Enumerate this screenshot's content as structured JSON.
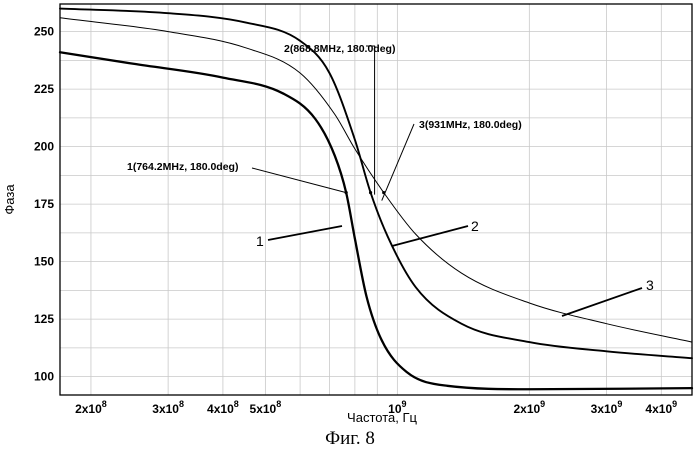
{
  "chart_data": {
    "type": "line",
    "xlabel": "Частота, Гц",
    "ylabel": "Фаза",
    "x_scale": "log",
    "x_unit": "Hz",
    "xlim": [
      170000000,
      4700000000
    ],
    "ylim": [
      92,
      262
    ],
    "y_ticks": [
      100,
      125,
      150,
      175,
      200,
      225,
      250
    ],
    "x_ticks": [
      {
        "value": 200000000,
        "mant": "2x10",
        "exp": "8"
      },
      {
        "value": 300000000,
        "mant": "3x10",
        "exp": "8"
      },
      {
        "value": 400000000,
        "mant": "4x10",
        "exp": "8"
      },
      {
        "value": 500000000,
        "mant": "5x10",
        "exp": "8"
      },
      {
        "value": 1000000000,
        "mant": "10",
        "exp": "9"
      },
      {
        "value": 2000000000,
        "mant": "2x10",
        "exp": "9"
      },
      {
        "value": 3000000000,
        "mant": "3x10",
        "exp": "9"
      },
      {
        "value": 4000000000,
        "mant": "4x10",
        "exp": "9"
      }
    ],
    "grid": true,
    "series": [
      {
        "name": "1",
        "points": [
          [
            170000000,
            241
          ],
          [
            250000000,
            236
          ],
          [
            400000000,
            230
          ],
          [
            550000000,
            223
          ],
          [
            650000000,
            212
          ],
          [
            720000000,
            196
          ],
          [
            764200000,
            180
          ],
          [
            800000000,
            160
          ],
          [
            850000000,
            135
          ],
          [
            920000000,
            116
          ],
          [
            1050000000,
            102
          ],
          [
            1300000000,
            96
          ],
          [
            2000000000,
            94.5
          ],
          [
            4700000000,
            95
          ]
        ]
      },
      {
        "name": "2",
        "points": [
          [
            170000000,
            260
          ],
          [
            300000000,
            258
          ],
          [
            450000000,
            254
          ],
          [
            600000000,
            246
          ],
          [
            700000000,
            232
          ],
          [
            800000000,
            203
          ],
          [
            868800000,
            180
          ],
          [
            950000000,
            161
          ],
          [
            1100000000,
            139
          ],
          [
            1400000000,
            123
          ],
          [
            2000000000,
            115
          ],
          [
            3000000000,
            111
          ],
          [
            4700000000,
            108
          ]
        ]
      },
      {
        "name": "3",
        "points": [
          [
            170000000,
            256
          ],
          [
            300000000,
            250
          ],
          [
            450000000,
            243
          ],
          [
            600000000,
            232
          ],
          [
            720000000,
            214
          ],
          [
            800000000,
            199
          ],
          [
            931000000,
            180
          ],
          [
            1100000000,
            162
          ],
          [
            1400000000,
            145
          ],
          [
            2000000000,
            132
          ],
          [
            3000000000,
            123
          ],
          [
            4700000000,
            115
          ]
        ]
      }
    ],
    "markers": [
      {
        "series": "1",
        "x": 764200000,
        "y": 180,
        "label": "1(764.2MHz, 180.0deg)"
      },
      {
        "series": "2",
        "x": 868800000,
        "y": 180,
        "label": "2(868.8MHz, 180.0deg)"
      },
      {
        "series": "3",
        "x": 931000000,
        "y": 180,
        "label": "3(931MHz, 180.0deg)"
      }
    ],
    "curve_labels": [
      "1",
      "2",
      "3"
    ]
  },
  "caption": "Фиг. 8"
}
